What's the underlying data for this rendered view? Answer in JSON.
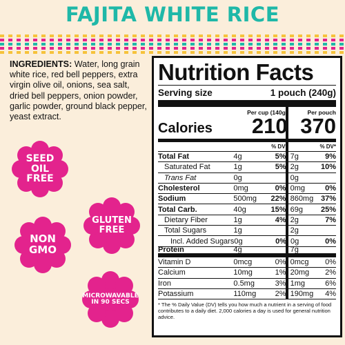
{
  "title": "FAJITA WHITE RICE",
  "ingredients": {
    "label": "INGREDIENTS:",
    "text": "Water, long grain white rice, red bell peppers, extra virgin olive oil, onions, sea salt, dried bell peppers, onion powder, garlic powder, ground black pepper, yeast extract."
  },
  "badges": [
    {
      "text": "SEED\nOIL\nFREE",
      "color": "#e3238d"
    },
    {
      "text": "GLUTEN\nFREE",
      "color": "#e3238d"
    },
    {
      "text": "NON\nGMO",
      "color": "#e3238d"
    },
    {
      "text": "MICROWAVABLE\nIN 90 SECS",
      "color": "#e3238d"
    }
  ],
  "nutrition": {
    "title": "Nutrition Facts",
    "serving_label": "Serving size",
    "serving_value": "1 pouch (240g)",
    "col1_header": "Per cup (140g)",
    "col2_header": "Per pouch",
    "calories_label": "Calories",
    "calories_1": "210",
    "calories_2": "370",
    "dv_label": "% DV*",
    "rows": [
      {
        "label": "Total Fat",
        "a1": "4g",
        "p1": "5%",
        "a2": "7g",
        "p2": "9%"
      },
      {
        "label": "Saturated Fat",
        "a1": "1g",
        "p1": "5%",
        "a2": "2g",
        "p2": "10%"
      },
      {
        "label": "Trans Fat",
        "a1": "0g",
        "p1": "",
        "a2": "0g",
        "p2": ""
      },
      {
        "label": "Cholesterol",
        "a1": "0mg",
        "p1": "0%",
        "a2": "0mg",
        "p2": "0%"
      },
      {
        "label": "Sodium",
        "a1": "500mg",
        "p1": "22%",
        "a2": "860mg",
        "p2": "37%"
      },
      {
        "label": "Total Carb.",
        "a1": "40g",
        "p1": "15%",
        "a2": "69g",
        "p2": "25%"
      },
      {
        "label": "Dietary Fiber",
        "a1": "1g",
        "p1": "4%",
        "a2": "2g",
        "p2": "7%"
      },
      {
        "label": "Total Sugars",
        "a1": "1g",
        "p1": "",
        "a2": "2g",
        "p2": ""
      },
      {
        "label": "Incl. Added Sugars",
        "a1": "0g",
        "p1": "0%",
        "a2": "0g",
        "p2": "0%"
      },
      {
        "label": "Protein",
        "a1": "4g",
        "p1": "",
        "a2": "7g",
        "p2": ""
      },
      {
        "label": "Vitamin D",
        "a1": "0mcg",
        "p1": "0%",
        "a2": "0mcg",
        "p2": "0%"
      },
      {
        "label": "Calcium",
        "a1": "10mg",
        "p1": "1%",
        "a2": "20mg",
        "p2": "2%"
      },
      {
        "label": "Iron",
        "a1": "0.5mg",
        "p1": "3%",
        "a2": "1mg",
        "p2": "6%"
      },
      {
        "label": "Potassium",
        "a1": "110mg",
        "p1": "2%",
        "a2": "190mg",
        "p2": "4%"
      }
    ],
    "footnote": "* The % Daily Value (DV) tells you how much a nutrient in a serving of food contributes to a daily diet. 2,000 calories a day is used for general nutrition advice."
  },
  "colors": {
    "background": "#fbeedb",
    "title": "#1fb8a8",
    "badge": "#e3238d"
  }
}
